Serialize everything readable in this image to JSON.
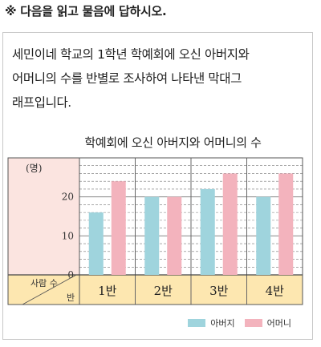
{
  "instruction": "※ 다음을 읽고 물음에 답하시오.",
  "problem_lines": [
    "세민이네 학교의 1학년 학예회에 오신 아버지와",
    "어머니의 수를 반별로 조사하여 나타낸 막대그",
    "래프입니다."
  ],
  "colors": {
    "father": "#9fd4dd",
    "mother": "#f3b3bd",
    "header_bg": "#fbe4e0",
    "footer_bg": "#fde7b0",
    "grid_line": "#777777"
  },
  "chart_data": {
    "type": "bar",
    "title": "학예회에 오신 아버지와 어머니의 수",
    "ylabel": "(명)",
    "corner_top": "사람 수",
    "corner_bottom": "반",
    "categories": [
      "1반",
      "2반",
      "3반",
      "4반"
    ],
    "series": [
      {
        "name": "아버지",
        "values": [
          16,
          20,
          22,
          20
        ]
      },
      {
        "name": "어머니",
        "values": [
          24,
          20,
          26,
          26
        ]
      }
    ],
    "yticks": [
      0,
      10,
      20
    ],
    "ylim": [
      0,
      30
    ],
    "grid": true,
    "legend": "bottom-right"
  }
}
